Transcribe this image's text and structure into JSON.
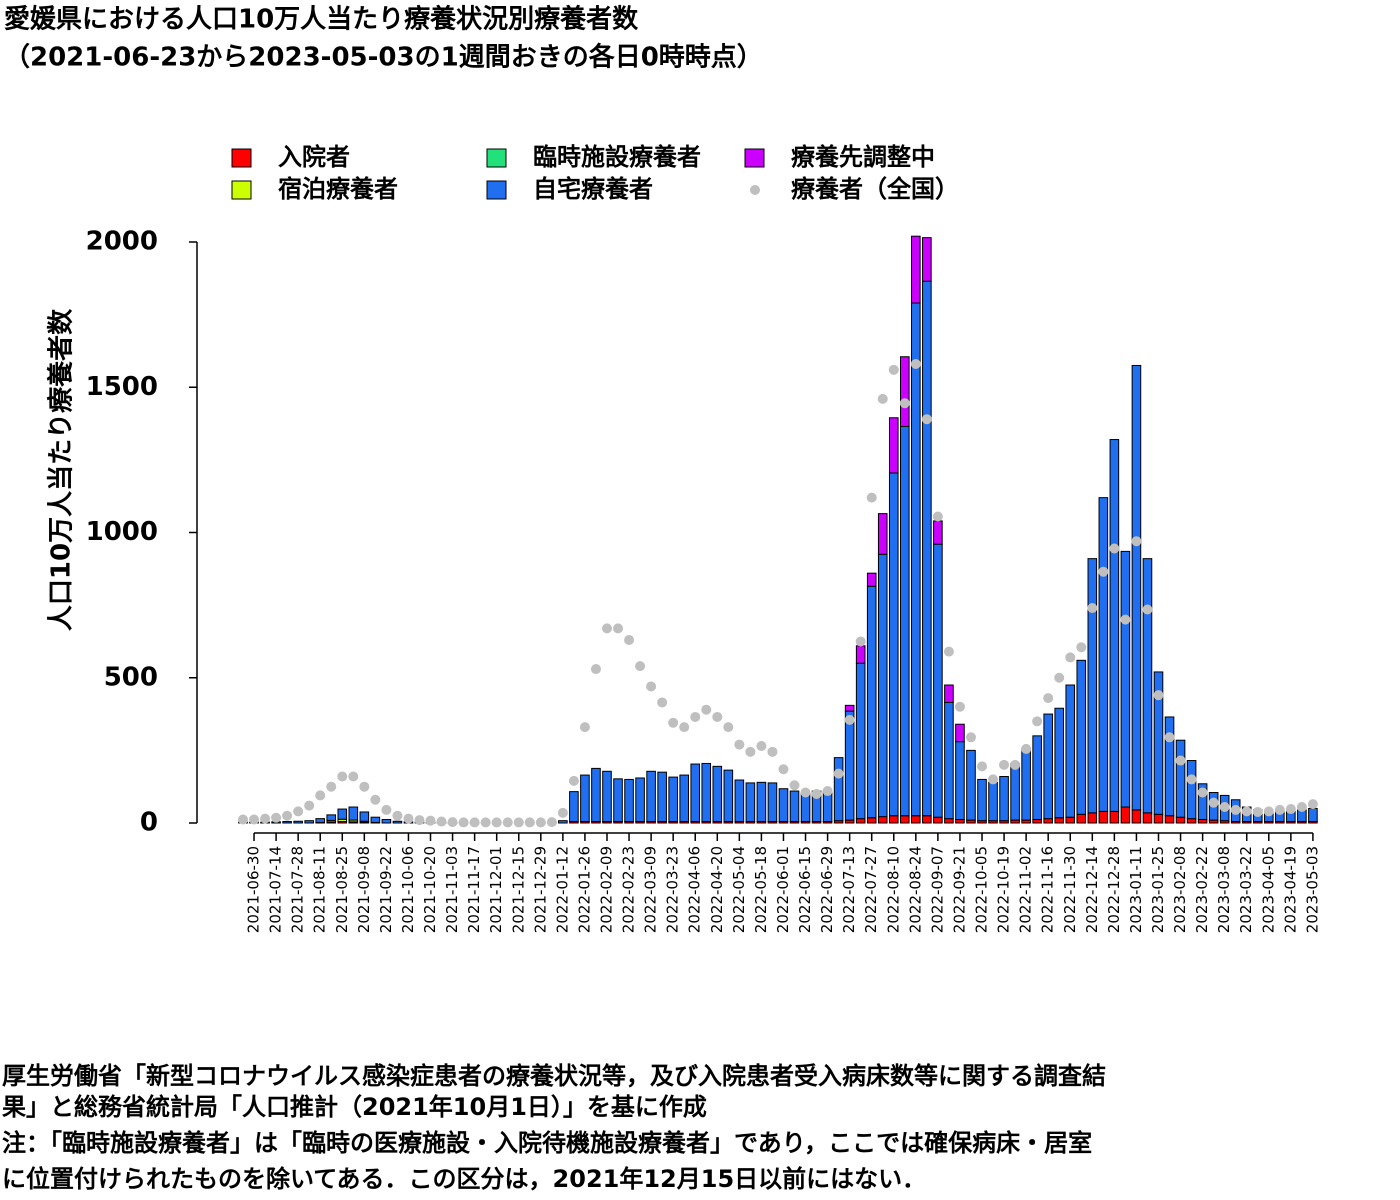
{
  "chart_data": {
    "type": "bar",
    "stacked": true,
    "title": "愛媛県における人口10万人当たり療養状況別療養者数",
    "subtitle": "（2021-06-23から2023-05-03の1週間おきの各日0時時点）",
    "y_label": "人口10万人当たり療養者数",
    "notes": [
      "厚生労働省「新型コロナウイルス感染症患者の療養状況等，及び入院患者受入病床数等に関する調査結",
      "果」と総務省統計局「人口推計（2021年10月1日）」を基に作成",
      "注：「臨時施設療養者」は「臨時の医療施設・入院待機施設療養者」であり，ここでは確保病床・居室",
      "に位置付けられたものを除いてある．この区分は，2021年12月15日以前にはない．"
    ],
    "categories": [
      null,
      "2021-06-30",
      null,
      "2021-07-14",
      null,
      "2021-07-28",
      null,
      "2021-08-11",
      null,
      "2021-08-25",
      null,
      "2021-09-08",
      null,
      "2021-09-22",
      null,
      "2021-10-06",
      null,
      "2021-10-20",
      null,
      "2021-11-03",
      null,
      "2021-11-17",
      null,
      "2021-12-01",
      null,
      "2021-12-15",
      null,
      "2021-12-29",
      null,
      "2022-01-12",
      null,
      "2022-01-26",
      null,
      "2022-02-09",
      null,
      "2022-02-23",
      null,
      "2022-03-09",
      null,
      "2022-03-23",
      null,
      "2022-04-06",
      null,
      "2022-04-20",
      null,
      "2022-05-04",
      null,
      "2022-05-18",
      null,
      "2022-06-01",
      null,
      "2022-06-15",
      null,
      "2022-06-29",
      null,
      "2022-07-13",
      null,
      "2022-07-27",
      null,
      "2022-08-10",
      null,
      "2022-08-24",
      null,
      "2022-09-07",
      null,
      "2022-09-21",
      null,
      "2022-10-05",
      null,
      "2022-10-19",
      null,
      "2022-11-02",
      null,
      "2022-11-16",
      null,
      "2022-11-30",
      null,
      "2022-12-14",
      null,
      "2022-12-28",
      null,
      "2023-01-11",
      null,
      "2023-01-25",
      null,
      "2023-02-08",
      null,
      "2023-02-22",
      null,
      "2023-03-08",
      null,
      "2023-03-22",
      null,
      "2023-04-05",
      null,
      "2023-04-19",
      null,
      "2023-05-03"
    ],
    "series": [
      {
        "name": "入院者",
        "color": "#ff0000",
        "values": [
          0,
          0,
          0,
          0,
          0,
          0,
          0,
          2,
          4,
          5,
          4,
          3,
          2,
          0,
          0,
          0,
          0,
          0,
          0,
          0,
          0,
          0,
          0,
          0,
          0,
          0,
          0,
          0,
          0,
          0,
          5,
          5,
          5,
          5,
          5,
          5,
          5,
          5,
          5,
          5,
          5,
          5,
          5,
          5,
          5,
          5,
          5,
          5,
          5,
          5,
          5,
          5,
          5,
          5,
          8,
          10,
          15,
          18,
          22,
          25,
          25,
          25,
          25,
          20,
          15,
          12,
          10,
          8,
          8,
          8,
          10,
          10,
          12,
          15,
          18,
          20,
          30,
          35,
          40,
          40,
          55,
          45,
          35,
          30,
          25,
          20,
          15,
          12,
          10,
          8,
          5,
          5,
          5,
          5,
          5,
          5,
          5,
          5
        ]
      },
      {
        "name": "宿泊療養者",
        "color": "#ccff00",
        "values": [
          0,
          0,
          0,
          0,
          0,
          0,
          0,
          0,
          5,
          8,
          6,
          3,
          0,
          0,
          0,
          0,
          0,
          0,
          0,
          0,
          0,
          0,
          0,
          0,
          0,
          0,
          0,
          0,
          0,
          0,
          0,
          0,
          0,
          0,
          0,
          0,
          0,
          0,
          0,
          0,
          0,
          0,
          0,
          0,
          0,
          0,
          0,
          0,
          0,
          0,
          0,
          0,
          0,
          0,
          0,
          0,
          0,
          0,
          0,
          0,
          0,
          0,
          0,
          0,
          0,
          0,
          0,
          0,
          0,
          0,
          0,
          0,
          0,
          0,
          0,
          0,
          0,
          0,
          0,
          0,
          0,
          0,
          0,
          0,
          0,
          0,
          0,
          0,
          0,
          0,
          0,
          0,
          0,
          0,
          0,
          0,
          0,
          0
        ]
      },
      {
        "name": "臨時施設療養者",
        "color": "#22e07a",
        "values": [
          0,
          0,
          0,
          0,
          0,
          0,
          0,
          0,
          0,
          0,
          0,
          0,
          0,
          0,
          0,
          0,
          0,
          0,
          0,
          0,
          0,
          0,
          0,
          0,
          0,
          0,
          0,
          0,
          0,
          0,
          0,
          0,
          0,
          0,
          0,
          0,
          0,
          0,
          0,
          0,
          0,
          0,
          0,
          0,
          0,
          0,
          0,
          0,
          0,
          0,
          0,
          0,
          0,
          0,
          0,
          0,
          0,
          0,
          0,
          0,
          0,
          0,
          0,
          0,
          0,
          0,
          0,
          0,
          0,
          0,
          0,
          0,
          0,
          0,
          0,
          0,
          0,
          0,
          0,
          0,
          0,
          0,
          0,
          0,
          0,
          0,
          0,
          0,
          0,
          0,
          0,
          0,
          0,
          0,
          0,
          0,
          0,
          0
        ]
      },
      {
        "name": "自宅療養者",
        "color": "#1f6ff0",
        "values": [
          3,
          3,
          3,
          4,
          5,
          6,
          8,
          13,
          19,
          35,
          45,
          32,
          18,
          12,
          6,
          4,
          3,
          2,
          2,
          1,
          1,
          1,
          1,
          1,
          1,
          1,
          1,
          1,
          2,
          8,
          103,
          160,
          183,
          173,
          147,
          145,
          150,
          173,
          170,
          153,
          160,
          198,
          200,
          190,
          177,
          143,
          133,
          135,
          133,
          113,
          105,
          98,
          105,
          105,
          217,
          375,
          535,
          797,
          903,
          1180,
          1340,
          1765,
          1840,
          940,
          400,
          268,
          240,
          142,
          132,
          152,
          195,
          245,
          288,
          360,
          377,
          455,
          530,
          875,
          1080,
          1280,
          880,
          1530,
          875,
          490,
          340,
          265,
          200,
          123,
          95,
          87,
          75,
          50,
          40,
          30,
          35,
          35,
          40,
          45
        ]
      },
      {
        "name": "療養先調整中",
        "color": "#cc00ff",
        "values": [
          0,
          0,
          0,
          0,
          0,
          0,
          0,
          0,
          0,
          0,
          0,
          0,
          0,
          0,
          0,
          0,
          0,
          0,
          0,
          0,
          0,
          0,
          0,
          0,
          0,
          0,
          0,
          0,
          0,
          0,
          0,
          0,
          0,
          0,
          0,
          0,
          0,
          0,
          0,
          0,
          0,
          0,
          0,
          0,
          0,
          0,
          0,
          0,
          0,
          0,
          0,
          0,
          0,
          0,
          0,
          20,
          60,
          45,
          140,
          190,
          240,
          230,
          150,
          80,
          60,
          60,
          0,
          0,
          0,
          0,
          0,
          0,
          0,
          0,
          0,
          0,
          0,
          0,
          0,
          0,
          0,
          0,
          0,
          0,
          0,
          0,
          0,
          0,
          0,
          0,
          0,
          0,
          0,
          0,
          0,
          0,
          0,
          0
        ]
      },
      {
        "name": "療養者（全国）",
        "type": "scatter",
        "color": "#bfbfbf",
        "values": [
          12,
          12,
          15,
          18,
          25,
          40,
          60,
          95,
          125,
          160,
          160,
          125,
          80,
          45,
          25,
          15,
          10,
          8,
          5,
          3,
          2,
          2,
          2,
          2,
          2,
          2,
          2,
          2,
          3,
          35,
          145,
          330,
          530,
          670,
          670,
          630,
          540,
          470,
          415,
          345,
          330,
          365,
          390,
          365,
          330,
          270,
          245,
          265,
          245,
          185,
          130,
          105,
          100,
          110,
          170,
          355,
          625,
          1120,
          1460,
          1560,
          1445,
          1580,
          1390,
          1055,
          590,
          400,
          295,
          195,
          150,
          200,
          200,
          255,
          350,
          430,
          500,
          570,
          605,
          740,
          865,
          945,
          700,
          970,
          735,
          440,
          295,
          215,
          150,
          105,
          70,
          55,
          45,
          40,
          38,
          40,
          45,
          48,
          55,
          65
        ]
      }
    ],
    "ylim": [
      0,
      2000
    ],
    "yticks": [
      0,
      500,
      1000,
      1500,
      2000
    ]
  }
}
